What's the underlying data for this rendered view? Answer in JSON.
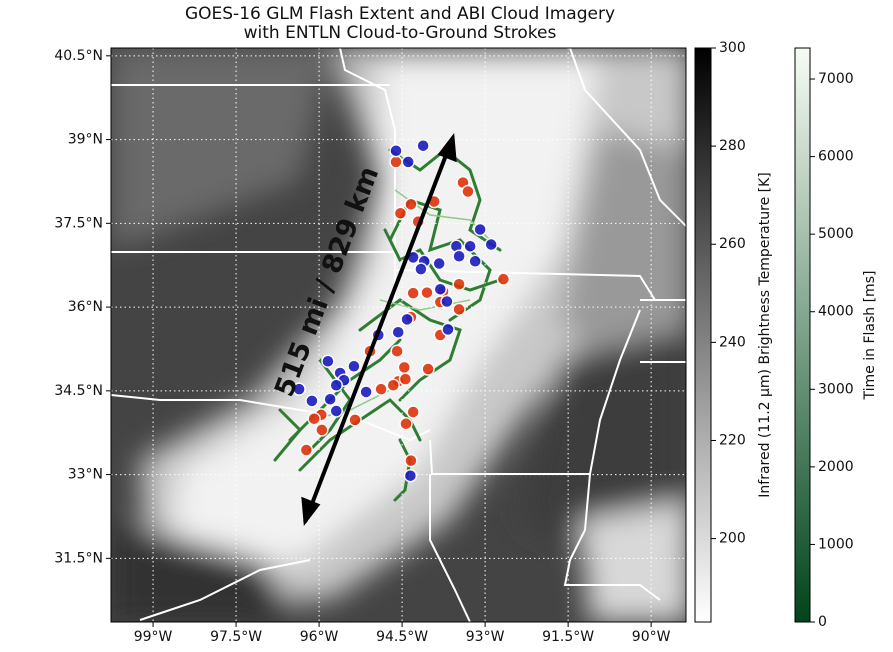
{
  "chart_data": {
    "type": "scatter",
    "title": [
      "GOES-16 GLM Flash Extent and ABI Cloud Imagery",
      "with ENTLN Cloud-to-Ground Strokes"
    ],
    "xlim": [
      -99.76,
      -89.37
    ],
    "ylim": [
      30.36,
      40.64
    ],
    "xticks": [
      {
        "value": -99,
        "label": "99°W"
      },
      {
        "value": -97.5,
        "label": "97.5°W"
      },
      {
        "value": -96,
        "label": "96°W"
      },
      {
        "value": -94.5,
        "label": "94.5°W"
      },
      {
        "value": -93,
        "label": "93°W"
      },
      {
        "value": -91.5,
        "label": "91.5°W"
      },
      {
        "value": -90,
        "label": "90°W"
      }
    ],
    "yticks": [
      {
        "value": 31.5,
        "label": "31.5°N"
      },
      {
        "value": 33,
        "label": "33°N"
      },
      {
        "value": 34.5,
        "label": "34.5°N"
      },
      {
        "value": 36,
        "label": "36°N"
      },
      {
        "value": 37.5,
        "label": "37.5°N"
      },
      {
        "value": 39,
        "label": "39°N"
      },
      {
        "value": 40.5,
        "label": "40.5°N"
      }
    ],
    "grid": true,
    "annotation": "515 mi / 829 km",
    "series": [
      {
        "color": "#e0330c",
        "x": [
          -94.61,
          -93.4,
          -93.31,
          -93.92,
          -94.34,
          -94.53,
          -94.21,
          -94.3,
          -94.05,
          -93.76,
          -93.47,
          -92.67,
          -93.81,
          -93.47,
          -94.34,
          -93.81,
          -94.59,
          -95.08,
          -94.46,
          -94.03,
          -94.57,
          -94.88,
          -94.66,
          -94.44,
          -95.96,
          -96.09,
          -95.95,
          -95.35,
          -94.3,
          -94.43,
          -96.23,
          -94.34
        ],
        "y": [
          38.6,
          38.23,
          38.07,
          37.89,
          37.84,
          37.68,
          37.53,
          36.25,
          36.26,
          36.28,
          36.41,
          36.5,
          36.09,
          35.96,
          35.82,
          35.5,
          35.21,
          35.21,
          34.92,
          34.89,
          34.67,
          34.53,
          34.6,
          34.71,
          34.07,
          34.0,
          33.8,
          33.98,
          34.12,
          33.91,
          33.44,
          33.25
        ]
      },
      {
        "color": "#1c1cc0",
        "x": [
          -94.61,
          -94.12,
          -94.39,
          -93.09,
          -93.52,
          -93.27,
          -92.89,
          -93.47,
          -93.18,
          -94.3,
          -94.1,
          -93.83,
          -94.16,
          -93.81,
          -93.69,
          -93.67,
          -94.41,
          -94.57,
          -94.93,
          -95.84,
          -95.37,
          -95.62,
          -95.55,
          -95.69,
          -95.15,
          -96.36,
          -96.13,
          -95.8,
          -95.69,
          -94.35
        ],
        "y": [
          38.8,
          38.89,
          38.6,
          37.39,
          37.09,
          37.09,
          37.12,
          36.91,
          36.82,
          36.89,
          36.82,
          36.78,
          36.68,
          36.32,
          36.1,
          35.6,
          35.78,
          35.55,
          35.5,
          35.03,
          34.94,
          34.82,
          34.69,
          34.6,
          34.48,
          34.53,
          34.32,
          34.35,
          34.14,
          32.98
        ]
      }
    ],
    "colorbars": [
      {
        "label": "Infrared (11.2 µm) Brightness Temperature [K]",
        "lim": [
          183,
          300
        ],
        "ticks": [
          200,
          220,
          240,
          260,
          280,
          300
        ],
        "color_low": "#ffffff",
        "color_high": "#000000"
      },
      {
        "label": "Time in Flash [ms]",
        "lim": [
          0,
          7400
        ],
        "ticks": [
          0,
          1000,
          2000,
          3000,
          4000,
          5000,
          6000,
          7000
        ],
        "color_low": "#00441b",
        "color_high": "#f7fcf5"
      }
    ]
  }
}
